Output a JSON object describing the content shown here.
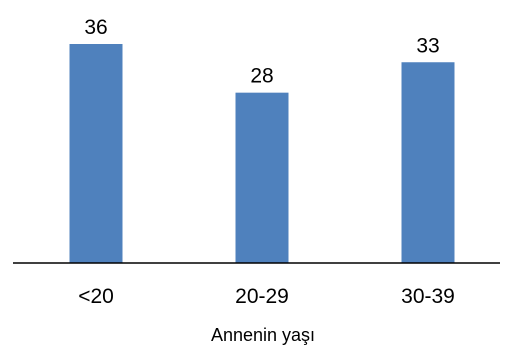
{
  "chart_data": {
    "type": "bar",
    "categories": [
      "<20",
      "20-29",
      "30-39"
    ],
    "values": [
      36,
      28,
      33
    ],
    "data_labels": [
      "36",
      "28",
      "33"
    ],
    "title": "",
    "xlabel": "Annenin yaşı",
    "ylabel": "",
    "ylim": [
      0,
      36
    ],
    "grid": false,
    "legend": "none",
    "bar_color": "#4f81bd",
    "axis_color": "#000000"
  }
}
